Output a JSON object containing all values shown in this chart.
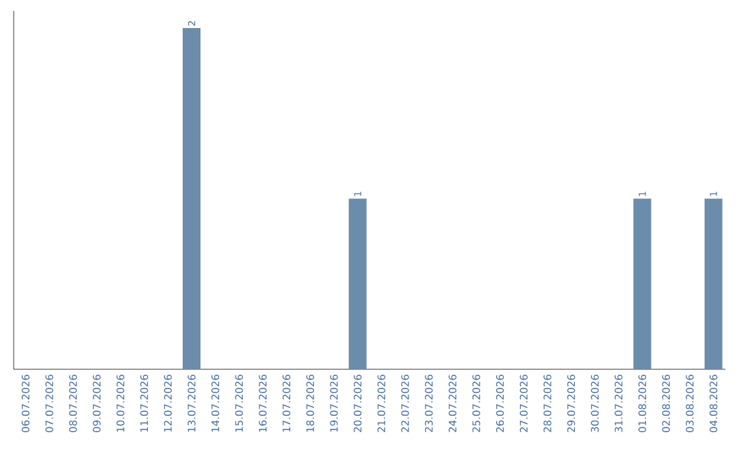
{
  "chart_data": {
    "type": "bar",
    "categories": [
      "06.07.2026",
      "07.07.2026",
      "08.07.2026",
      "09.07.2026",
      "10.07.2026",
      "11.07.2026",
      "12.07.2026",
      "13.07.2026",
      "14.07.2026",
      "15.07.2026",
      "16.07.2026",
      "17.07.2026",
      "18.07.2026",
      "19.07.2026",
      "20.07.2026",
      "21.07.2026",
      "22.07.2026",
      "23.07.2026",
      "24.07.2026",
      "25.07.2026",
      "26.07.2026",
      "27.07.2026",
      "28.07.2026",
      "29.07.2026",
      "30.07.2026",
      "31.07.2026",
      "01.08.2026",
      "02.08.2026",
      "03.08.2026",
      "04.08.2026"
    ],
    "values": [
      0,
      0,
      0,
      0,
      0,
      0,
      0,
      2,
      0,
      0,
      0,
      0,
      0,
      0,
      1,
      0,
      0,
      0,
      0,
      0,
      0,
      0,
      0,
      0,
      0,
      0,
      1,
      0,
      0,
      1
    ],
    "value_labels": [
      null,
      null,
      null,
      null,
      null,
      null,
      null,
      "2",
      null,
      null,
      null,
      null,
      null,
      null,
      "1",
      null,
      null,
      null,
      null,
      null,
      null,
      null,
      null,
      null,
      null,
      null,
      "1",
      null,
      null,
      "1"
    ],
    "color": "#6b8caa",
    "tick_labels": "x",
    "grid": false
  }
}
